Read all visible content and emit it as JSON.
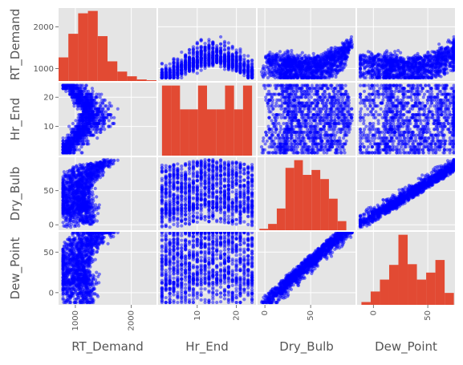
{
  "chart_data": {
    "type": "scatter_matrix",
    "variables": [
      "RT_Demand",
      "Hr_End",
      "Dry_Bulb",
      "Dew_Point"
    ],
    "ranges": {
      "RT_Demand": [
        700,
        2450
      ],
      "Hr_End": [
        0,
        25
      ],
      "Dry_Bulb": [
        -8,
        99
      ],
      "Dew_Point": [
        -15,
        75
      ]
    },
    "ticks": {
      "RT_Demand": [
        1000,
        2000
      ],
      "Hr_End": [
        10,
        20
      ],
      "Dry_Bulb": [
        0,
        50
      ],
      "Dew_Point": [
        0,
        50
      ]
    },
    "ytick_labels": {
      "RT_Demand": [
        "1000",
        "2000"
      ],
      "Hr_End": [
        "10",
        "20"
      ],
      "Dry_Bulb": [
        "0",
        "50"
      ],
      "Dew_Point": [
        "0",
        "50"
      ]
    },
    "xtick_labels": {
      "RT_Demand": [
        "1000",
        "2000"
      ],
      "Hr_End": [
        "10",
        "20"
      ],
      "Dry_Bulb": [
        "0",
        "50"
      ],
      "Dew_Point": [
        "0",
        "50"
      ]
    },
    "histograms": {
      "RT_Demand": {
        "edges": [
          700,
          875,
          1050,
          1225,
          1400,
          1575,
          1750,
          1925,
          2100,
          2275,
          2450
        ],
        "counts": [
          30,
          60,
          86,
          89,
          57,
          25,
          12,
          6,
          2,
          1
        ]
      },
      "Hr_End": {
        "edges": [
          1,
          3.3,
          5.6,
          7.9,
          10.2,
          12.5,
          14.8,
          17.1,
          19.4,
          21.7,
          24
        ],
        "counts": [
          100,
          100,
          66,
          66,
          100,
          66,
          66,
          100,
          66,
          100
        ]
      },
      "Dry_Bulb": {
        "edges": [
          -6,
          3.5,
          13,
          22.5,
          32,
          41.5,
          51,
          60.5,
          70,
          79.5,
          89
        ],
        "counts": [
          2,
          9,
          31,
          89,
          100,
          79,
          86,
          73,
          45,
          13
        ]
      },
      "Dew_Point": {
        "edges": [
          -11,
          -2.5,
          6,
          14.5,
          23,
          31.5,
          40,
          48.5,
          57,
          65.5,
          74
        ],
        "counts": [
          4,
          19,
          36,
          57,
          100,
          58,
          36,
          46,
          64,
          17
        ]
      }
    },
    "scatter_color": "#0000ff",
    "hist_color": "#e24a33",
    "panel_bg": "#e5e5e5",
    "grid": true
  }
}
